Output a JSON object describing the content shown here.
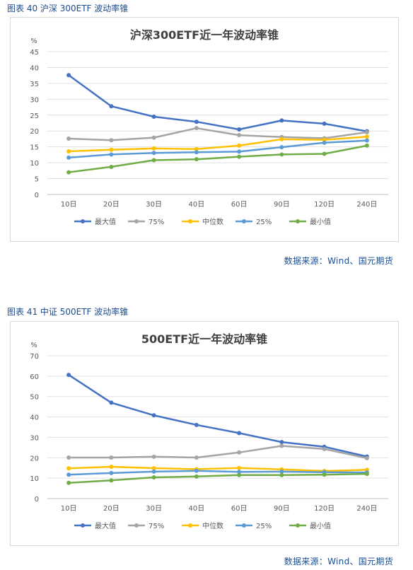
{
  "figures": [
    {
      "caption": "图表 40  沪深 300ETF 波动率锥",
      "source": "数据来源：Wind、国元期货"
    },
    {
      "caption": "图表 41  中证 500ETF 波动率锥",
      "source": "数据来源：Wind、国元期货"
    }
  ],
  "chart_data": [
    {
      "type": "line",
      "title": "沪深300ETF近一年波动率锥",
      "ylabel": "%",
      "xlabel": "",
      "categories": [
        "10日",
        "20日",
        "30日",
        "40日",
        "60日",
        "90日",
        "120日",
        "240日"
      ],
      "ylim": [
        0,
        45
      ],
      "yticks": [
        0,
        5,
        10,
        15,
        20,
        25,
        30,
        35,
        40,
        45
      ],
      "grid": true,
      "legend_position": "bottom",
      "series": [
        {
          "name": "最大值",
          "color": "#4472c4",
          "values": [
            37.6,
            27.8,
            24.5,
            22.9,
            20.5,
            23.3,
            22.3,
            19.9
          ]
        },
        {
          "name": "75%",
          "color": "#a5a5a5",
          "values": [
            17.6,
            17.1,
            17.9,
            20.9,
            18.7,
            18.1,
            17.7,
            19.6
          ]
        },
        {
          "name": "中位数",
          "color": "#ffc000",
          "values": [
            13.6,
            14.1,
            14.5,
            14.3,
            15.4,
            17.4,
            17.2,
            18.2
          ]
        },
        {
          "name": "25%",
          "color": "#5b9bd5",
          "values": [
            11.6,
            12.6,
            13.1,
            13.3,
            13.5,
            14.9,
            16.3,
            17.0
          ]
        },
        {
          "name": "最小值",
          "color": "#70ad47",
          "values": [
            7.0,
            8.7,
            10.8,
            11.1,
            11.9,
            12.6,
            12.8,
            15.4
          ]
        }
      ]
    },
    {
      "type": "line",
      "title": "500ETF近一年波动率锥",
      "ylabel": "%",
      "xlabel": "",
      "categories": [
        "10日",
        "20日",
        "30日",
        "40日",
        "60日",
        "90日",
        "120日",
        "240日"
      ],
      "ylim": [
        0,
        70
      ],
      "yticks": [
        0,
        10,
        20,
        30,
        40,
        50,
        60,
        70
      ],
      "grid": true,
      "legend_position": "bottom",
      "series": [
        {
          "name": "最大值",
          "color": "#4472c4",
          "values": [
            60.6,
            47.0,
            40.8,
            36.1,
            32.1,
            27.7,
            25.4,
            20.6
          ]
        },
        {
          "name": "75%",
          "color": "#a5a5a5",
          "values": [
            20.1,
            20.1,
            20.5,
            20.1,
            22.6,
            25.8,
            24.3,
            19.8
          ]
        },
        {
          "name": "中位数",
          "color": "#ffc000",
          "values": [
            14.8,
            15.6,
            14.9,
            14.4,
            15.0,
            14.3,
            13.5,
            14.1
          ]
        },
        {
          "name": "25%",
          "color": "#5b9bd5",
          "values": [
            11.7,
            12.5,
            13.2,
            13.6,
            13.1,
            13.2,
            12.9,
            12.8
          ]
        },
        {
          "name": "最小值",
          "color": "#70ad47",
          "values": [
            7.7,
            8.9,
            10.4,
            10.8,
            11.5,
            11.5,
            11.7,
            12.1
          ]
        }
      ]
    }
  ]
}
